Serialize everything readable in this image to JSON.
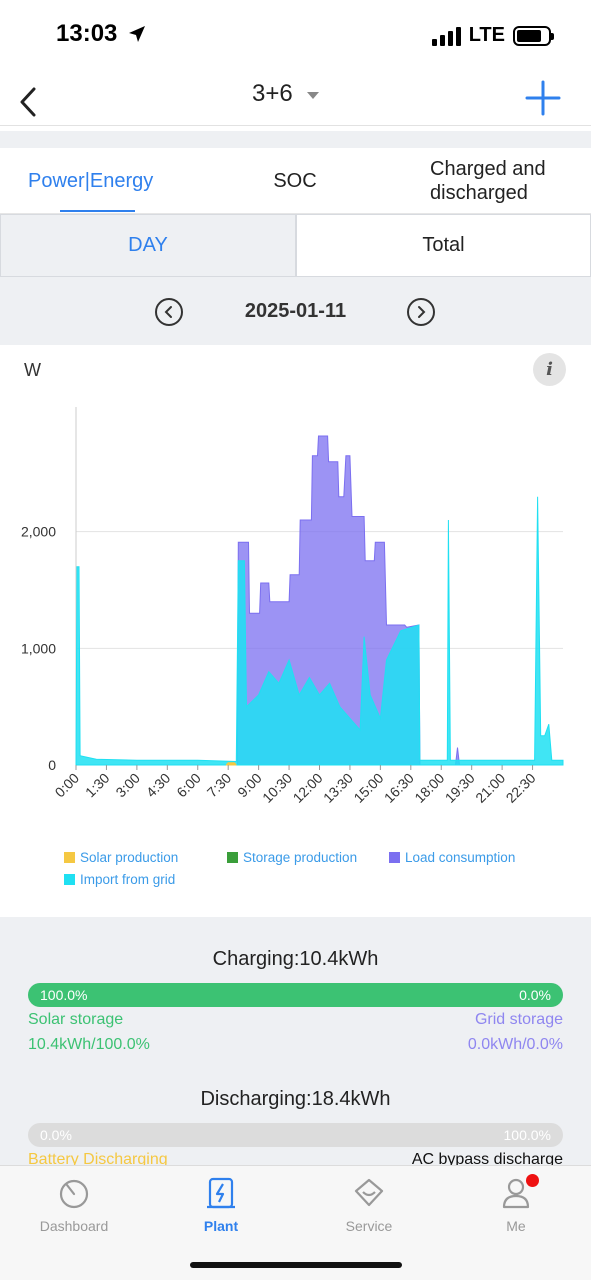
{
  "status": {
    "time": "13:03",
    "network": "LTE"
  },
  "nav": {
    "plant_name": "3+6"
  },
  "tabs": [
    "Power|Energy",
    "SOC",
    "Charged and discharged"
  ],
  "period": {
    "day": "DAY",
    "total": "Total"
  },
  "date": "2025-01-11",
  "chart": {
    "unit": "W",
    "info": "i"
  },
  "chart_data": {
    "type": "area",
    "ylabel": "W",
    "ylim": [
      0,
      3000
    ],
    "yticks": [
      "0",
      "1,000",
      "2,000"
    ],
    "xticks": [
      "0:00",
      "1:30",
      "3:00",
      "4:30",
      "6:00",
      "7:30",
      "9:00",
      "10:30",
      "12:00",
      "13:30",
      "15:00",
      "16:30",
      "18:00",
      "19:30",
      "21:00",
      "22:30"
    ],
    "grid": true,
    "legend_position": "bottom",
    "series": [
      {
        "name": "Solar production",
        "color": "#f5c842",
        "points": [
          [
            7.4,
            0
          ],
          [
            7.5,
            20
          ],
          [
            7.8,
            20
          ],
          [
            7.9,
            0
          ]
        ]
      },
      {
        "name": "Storage production",
        "color": "#3a9e3a",
        "points": []
      },
      {
        "name": "Load consumption",
        "color": "#7b6ff0",
        "points": [
          [
            0,
            0
          ],
          [
            7.95,
            0
          ],
          [
            8.0,
            1910
          ],
          [
            8.5,
            1910
          ],
          [
            8.55,
            1300
          ],
          [
            9.05,
            1300
          ],
          [
            9.1,
            1560
          ],
          [
            9.5,
            1560
          ],
          [
            9.55,
            1400
          ],
          [
            10.5,
            1400
          ],
          [
            10.55,
            1630
          ],
          [
            11.0,
            1630
          ],
          [
            11.05,
            2100
          ],
          [
            11.6,
            2100
          ],
          [
            11.65,
            2650
          ],
          [
            11.9,
            2650
          ],
          [
            11.95,
            2820
          ],
          [
            12.4,
            2820
          ],
          [
            12.45,
            2600
          ],
          [
            12.9,
            2600
          ],
          [
            12.95,
            2300
          ],
          [
            13.2,
            2300
          ],
          [
            13.3,
            2650
          ],
          [
            13.5,
            2650
          ],
          [
            13.6,
            2130
          ],
          [
            14.2,
            2130
          ],
          [
            14.25,
            1750
          ],
          [
            14.7,
            1750
          ],
          [
            14.75,
            1910
          ],
          [
            15.2,
            1910
          ],
          [
            15.3,
            1200
          ],
          [
            16.2,
            1200
          ],
          [
            16.3,
            1180
          ],
          [
            16.9,
            1200
          ],
          [
            16.95,
            0
          ],
          [
            18.7,
            0
          ],
          [
            18.8,
            150
          ],
          [
            18.9,
            0
          ],
          [
            24,
            0
          ]
        ]
      },
      {
        "name": "Import from grid",
        "color": "#1fe0f2",
        "points": [
          [
            0,
            0
          ],
          [
            0.05,
            1700
          ],
          [
            0.15,
            1700
          ],
          [
            0.2,
            80
          ],
          [
            1.0,
            50
          ],
          [
            3.0,
            40
          ],
          [
            6.0,
            40
          ],
          [
            7.9,
            30
          ],
          [
            8.0,
            1750
          ],
          [
            8.3,
            1750
          ],
          [
            8.4,
            500
          ],
          [
            9.0,
            600
          ],
          [
            9.5,
            800
          ],
          [
            10.0,
            700
          ],
          [
            10.5,
            900
          ],
          [
            11.0,
            600
          ],
          [
            11.5,
            750
          ],
          [
            12.0,
            600
          ],
          [
            12.5,
            700
          ],
          [
            13.0,
            500
          ],
          [
            13.5,
            400
          ],
          [
            14.0,
            300
          ],
          [
            14.2,
            1100
          ],
          [
            14.5,
            600
          ],
          [
            15.0,
            400
          ],
          [
            15.3,
            900
          ],
          [
            16.0,
            1150
          ],
          [
            16.9,
            1200
          ],
          [
            16.95,
            40
          ],
          [
            18.0,
            40
          ],
          [
            18.3,
            40
          ],
          [
            18.35,
            2100
          ],
          [
            18.45,
            40
          ],
          [
            19.5,
            40
          ],
          [
            22.5,
            40
          ],
          [
            22.6,
            40
          ],
          [
            22.75,
            2300
          ],
          [
            22.9,
            250
          ],
          [
            23.1,
            250
          ],
          [
            23.3,
            350
          ],
          [
            23.45,
            40
          ],
          [
            24,
            40
          ]
        ]
      }
    ]
  },
  "legend": {
    "solar": "Solar production",
    "storage": "Storage production",
    "load": "Load consumption",
    "grid": "Import from grid"
  },
  "charging": {
    "title": "Charging:10.4kWh",
    "left_pct": "100.0%",
    "right_pct": "0.0%",
    "fill": 1.0,
    "left_label": "Solar storage",
    "left_value": "10.4kWh/100.0%",
    "right_label": "Grid storage",
    "right_value": "0.0kWh/0.0%"
  },
  "discharging": {
    "title": "Discharging:18.4kWh",
    "left_pct": "0.0%",
    "right_pct": "100.0%",
    "fill": 0.0,
    "left_label": "Battery Discharging",
    "right_label": "AC bypass discharge"
  },
  "tabbar": [
    "Dashboard",
    "Plant",
    "Service",
    "Me"
  ]
}
